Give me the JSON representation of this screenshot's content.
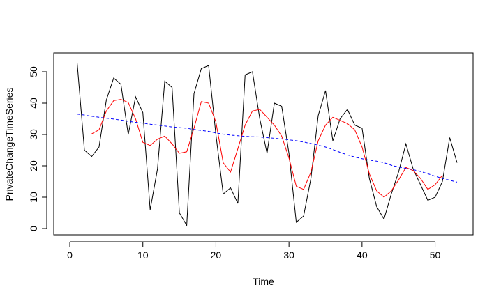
{
  "chart_data": {
    "type": "line",
    "title": "",
    "xlabel": "Time",
    "ylabel": "PrivateChangeTimeSeries",
    "xlim": [
      -2.2,
      55.2
    ],
    "ylim": [
      -2,
      56
    ],
    "xticks": [
      0,
      10,
      20,
      30,
      40,
      50
    ],
    "yticks": [
      0,
      10,
      20,
      30,
      40,
      50
    ],
    "grid": false,
    "legend": "none",
    "series": [
      {
        "color": "#000000",
        "style": "solid",
        "x": [
          1,
          2,
          3,
          4,
          5,
          6,
          7,
          8,
          9,
          10,
          11,
          12,
          13,
          14,
          15,
          16,
          17,
          18,
          19,
          20,
          21,
          22,
          23,
          24,
          25,
          26,
          27,
          28,
          29,
          30,
          31,
          32,
          33,
          34,
          35,
          36,
          37,
          38,
          39,
          40,
          41,
          42,
          43,
          44,
          45,
          46,
          47,
          48,
          49,
          50,
          51,
          52,
          53
        ],
        "values": [
          53,
          25,
          23,
          26,
          41,
          48,
          46,
          30,
          42,
          37,
          6,
          19,
          47,
          45,
          5,
          1,
          43,
          51,
          52,
          30,
          11,
          13,
          8,
          49,
          50,
          35,
          24,
          40,
          39,
          24,
          2,
          4,
          16,
          36,
          44,
          28,
          35,
          38,
          33,
          32,
          16,
          7,
          3,
          11,
          18,
          27,
          19,
          14,
          9,
          10,
          15,
          29,
          21
        ]
      },
      {
        "color": "#ff0000",
        "style": "solid",
        "x": [
          3,
          4,
          5,
          6,
          7,
          8,
          9,
          10,
          11,
          12,
          13,
          14,
          15,
          16,
          17,
          18,
          19,
          20,
          21,
          22,
          23,
          24,
          25,
          26,
          27,
          28,
          29,
          30,
          31,
          32,
          33,
          34,
          35,
          36,
          37,
          38,
          39,
          40,
          41,
          42,
          43,
          44,
          45,
          46,
          47,
          48,
          49,
          50,
          51
        ],
        "values": [
          30.2,
          31.5,
          37.5,
          40.8,
          41.2,
          40.2,
          35,
          27.5,
          26.5,
          28.5,
          29.5,
          27,
          24,
          24.5,
          32,
          40.5,
          40,
          34,
          21,
          18,
          25.5,
          33,
          37.5,
          38,
          35.5,
          33,
          29.5,
          22.5,
          13.5,
          12.5,
          18,
          28,
          33,
          35.5,
          34.5,
          33.5,
          31.5,
          26,
          17.5,
          12,
          10,
          12,
          15.5,
          19.5,
          18.5,
          16,
          12.5,
          14,
          17
        ]
      },
      {
        "color": "#0000ff",
        "style": "dashed",
        "x": [
          1,
          2,
          3,
          4,
          5,
          6,
          7,
          8,
          9,
          10,
          11,
          12,
          13,
          14,
          15,
          16,
          17,
          18,
          19,
          20,
          21,
          22,
          23,
          24,
          25,
          26,
          27,
          28,
          29,
          30,
          31,
          32,
          33,
          34,
          35,
          36,
          37,
          38,
          39,
          40,
          41,
          42,
          43,
          44,
          45,
          46,
          47,
          48,
          49,
          50,
          51,
          52,
          53
        ],
        "values": [
          36.5,
          36.2,
          35.8,
          35.5,
          35.2,
          34.9,
          34.6,
          34.2,
          33.9,
          33.6,
          33.3,
          33,
          32.7,
          32.4,
          32.2,
          32,
          31.6,
          31.3,
          31,
          30.5,
          30.1,
          29.8,
          29.6,
          29.4,
          29.3,
          29.2,
          29,
          28.8,
          28.6,
          28.3,
          28,
          27.6,
          27.1,
          26.6,
          26,
          25.2,
          24.3,
          23.5,
          22.8,
          22.3,
          21.8,
          21.5,
          21,
          20.2,
          19.6,
          19.2,
          18.8,
          18.2,
          17.5,
          16.7,
          16,
          15.4,
          14.8
        ]
      }
    ]
  }
}
